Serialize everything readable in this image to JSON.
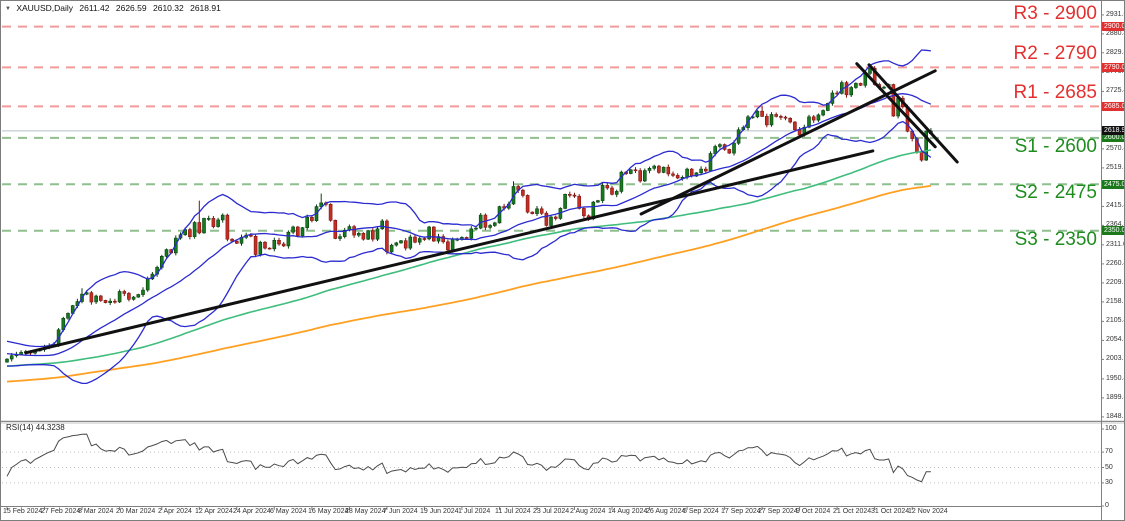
{
  "window": {
    "symbol_title": "XAUUSD,Daily",
    "ohlc": {
      "open": "2611.42",
      "high": "2626.59",
      "low": "2610.32",
      "close": "2618.91"
    }
  },
  "rsi_panel": {
    "label": "RSI(14) 44.3238",
    "period": 14,
    "current_value": 44.3238,
    "ticks": [
      100,
      70,
      50,
      30,
      0
    ],
    "guides": [
      70,
      50,
      30
    ]
  },
  "colors": {
    "bull": "#167a1e",
    "bull_border": "#0a3f10",
    "bear": "#c62d23",
    "bear_border": "#7a150f",
    "bollinger": "#2b2bd0",
    "ma_fast": "#3fbd7d",
    "ma_slow": "#ffa022",
    "resistance_line": "#f19b9b",
    "resistance_text": "#e42f2f",
    "support_line": "#8fbe8f",
    "support_text": "#1f8c1f",
    "trendline": "#111111",
    "rsi_line": "#4a4a4a",
    "axis": "#808080",
    "grid_dot": "#c0c0c0",
    "bid_line": "#b8bfc6",
    "box_resistance": "#e03030",
    "box_support": "#1c7a1c",
    "box_price": "#111111"
  },
  "levels": [
    {
      "id": "R3",
      "label": "R3 - 2900",
      "price": 2900,
      "axis_label": "2900.00",
      "type": "resistance"
    },
    {
      "id": "R2",
      "label": "R2 - 2790",
      "price": 2790,
      "axis_label": "2790.00",
      "type": "resistance"
    },
    {
      "id": "R1",
      "label": "R1 - 2685",
      "price": 2685,
      "axis_label": "2685.00",
      "type": "resistance"
    },
    {
      "id": "S1",
      "label": "S1 - 2600",
      "price": 2600,
      "axis_label": "2600.00",
      "type": "support"
    },
    {
      "id": "S2",
      "label": "S2 - 2475",
      "price": 2475,
      "axis_label": "2475.00",
      "type": "support"
    },
    {
      "id": "S3",
      "label": "S3 - 2350",
      "price": 2350,
      "axis_label": "2350.00",
      "type": "support"
    }
  ],
  "current_price": {
    "value": 2618.91,
    "axis_label": "2618.91"
  },
  "price_axis_ticks": [
    2931.6,
    2880.45,
    2829.3,
    2776.6,
    2725.45,
    2674.3,
    2570.45,
    2519.3,
    2415.45,
    2364.3,
    2311.6,
    2260.45,
    2209.3,
    2158.15,
    2105.45,
    2054.3,
    2003.15,
    1950.45,
    1899.3,
    1848.15
  ],
  "chart_data": {
    "type": "candlestick",
    "title": "XAUUSD Daily with Bollinger Bands, moving averages, pivot levels and RSI(14)",
    "ylim": [
      1837,
      2969
    ],
    "x_axis": {
      "labels": [
        "15 Feb 2024",
        "27 Feb 2024",
        "8 Mar 2024",
        "20 Mar 2024",
        "2 Apr 2024",
        "12 Apr 2024",
        "24 Apr 2024",
        "6 May 2024",
        "16 May 2024",
        "28 May 2024",
        "7 Jun 2024",
        "19 Jun 2024",
        "1 Jul 2024",
        "11 Jul 2024",
        "23 Jul 2024",
        "2 Aug 2024",
        "14 Aug 2024",
        "26 Aug 2024",
        "5 Sep 2024",
        "17 Sep 2024",
        "27 Sep 2024",
        "9 Oct 2024",
        "21 Oct 2024",
        "31 Oct 2024",
        "12 Nov 2024"
      ],
      "indices": [
        0,
        8,
        16,
        24,
        33,
        41,
        49,
        57,
        65,
        73,
        81,
        89,
        97,
        105,
        113,
        121,
        129,
        137,
        145,
        153,
        161,
        169,
        177,
        185,
        193
      ]
    },
    "closes": [
      2004,
      2013,
      2017,
      2022,
      2024,
      2020,
      2026,
      2030,
      2035,
      2040,
      2044,
      2083,
      2114,
      2127,
      2148,
      2159,
      2179,
      2183,
      2158,
      2174,
      2162,
      2156,
      2160,
      2158,
      2186,
      2181,
      2165,
      2171,
      2178,
      2190,
      2220,
      2233,
      2251,
      2281,
      2299,
      2290,
      2330,
      2339,
      2353,
      2334,
      2372,
      2344,
      2383,
      2383,
      2361,
      2379,
      2392,
      2327,
      2322,
      2316,
      2332,
      2338,
      2335,
      2286,
      2319,
      2303,
      2301,
      2324,
      2314,
      2309,
      2346,
      2360,
      2336,
      2358,
      2386,
      2377,
      2415,
      2425,
      2421,
      2378,
      2329,
      2334,
      2351,
      2361,
      2338,
      2343,
      2327,
      2350,
      2327,
      2355,
      2376,
      2293,
      2311,
      2317,
      2323,
      2303,
      2333,
      2319,
      2329,
      2328,
      2360,
      2322,
      2334,
      2320,
      2298,
      2327,
      2327,
      2332,
      2330,
      2355,
      2357,
      2392,
      2359,
      2364,
      2371,
      2415,
      2411,
      2422,
      2469,
      2459,
      2445,
      2400,
      2396,
      2409,
      2397,
      2364,
      2387,
      2383,
      2410,
      2448,
      2446,
      2443,
      2410,
      2390,
      2382,
      2427,
      2431,
      2472,
      2465,
      2448,
      2456,
      2508,
      2504,
      2514,
      2512,
      2484,
      2512,
      2518,
      2524,
      2507,
      2521,
      2503,
      2499,
      2492,
      2494,
      2516,
      2497,
      2506,
      2516,
      2511,
      2558,
      2577,
      2582,
      2569,
      2559,
      2586,
      2622,
      2628,
      2657,
      2657,
      2672,
      2658,
      2635,
      2663,
      2658,
      2656,
      2653,
      2643,
      2622,
      2608,
      2629,
      2657,
      2648,
      2662,
      2674,
      2693,
      2721,
      2720,
      2749,
      2716,
      2736,
      2747,
      2742,
      2774,
      2788,
      2744,
      2737,
      2737,
      2744,
      2659,
      2707,
      2684,
      2618,
      2598,
      2563,
      2540,
      2618,
      2618.91
    ],
    "last_open": 2611.42,
    "key_highs": {
      "16": 2195,
      "41": 2431,
      "67": 2450,
      "108": 2483,
      "161": 2685,
      "184": 2790,
      "197": 2626.59
    },
    "key_lows": {
      "81": 2286,
      "195": 2536,
      "197": 2610.32
    },
    "prehistory": {
      "step": 5,
      "anchors": [
        1880,
        1862,
        1852,
        1858,
        1870,
        1885,
        1900,
        1915,
        1930,
        1912,
        1895,
        1882,
        1895,
        1915,
        1935,
        1958,
        1978,
        1992,
        1942,
        1918,
        1908,
        1932,
        1962,
        1988,
        2012,
        2032,
        2042,
        2030,
        2040,
        2032,
        2014,
        1996
      ]
    },
    "indicators": {
      "bollinger": {
        "period": 20,
        "deviation": 2
      },
      "ma_fast_period": 90,
      "ma_slow_period": 160,
      "rsi_period": 14
    },
    "trendlines": [
      {
        "name": "long-ascending-support",
        "i1": 4.0,
        "p1": 2021,
        "i2": 184.6,
        "p2": 2565
      },
      {
        "name": "steep-ascending",
        "i1": 135.2,
        "p1": 2395,
        "i2": 197.9,
        "p2": 2781
      },
      {
        "name": "descending-1",
        "i1": 181.2,
        "p1": 2800,
        "i2": 197.9,
        "p2": 2576
      },
      {
        "name": "descending-2",
        "i1": 183.8,
        "p1": 2797,
        "i2": 202.6,
        "p2": 2535
      }
    ]
  }
}
